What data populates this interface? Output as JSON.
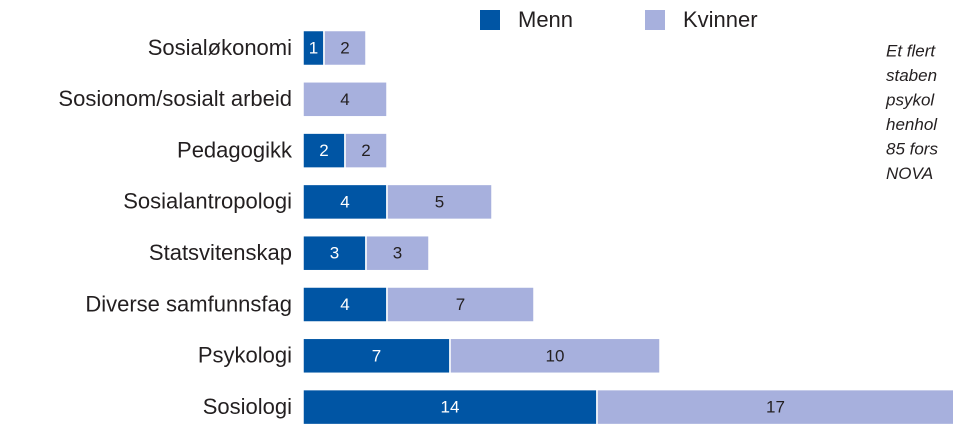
{
  "chart_data": {
    "type": "stacked-bar-horizontal",
    "categories": [
      "Sosialøkonomi",
      "Sosionom/sosialt arbeid",
      "Pedagogikk",
      "Sosialantropologi",
      "Statsvitenskap",
      "Diverse samfunnsfag",
      "Psykologi",
      "Sosiologi"
    ],
    "series": [
      {
        "name": "Menn",
        "color": "#0055a4",
        "label_color": "#ffffff",
        "values": [
          1,
          null,
          2,
          4,
          3,
          4,
          7,
          14
        ]
      },
      {
        "name": "Kvinner",
        "color": "#a7b0dd",
        "label_color": "#231f20",
        "values": [
          2,
          4,
          2,
          5,
          3,
          7,
          10,
          17
        ]
      }
    ],
    "annotation": [
      "Et flert",
      "staben",
      "psykol",
      "henhol",
      "85 fors",
      "NOVA"
    ]
  }
}
